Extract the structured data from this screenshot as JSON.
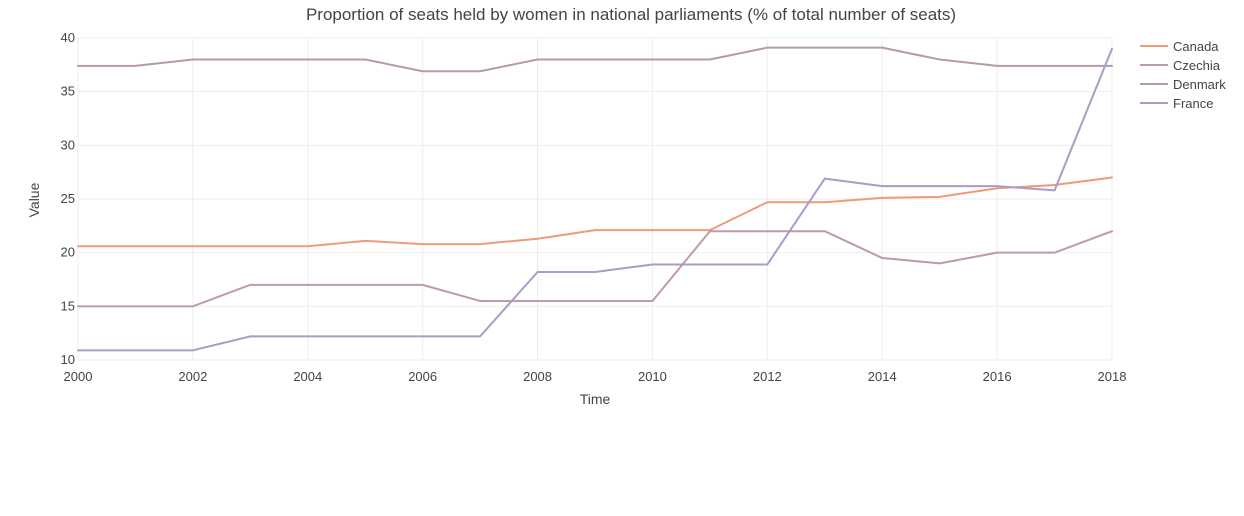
{
  "chart_data": {
    "type": "line",
    "title": "Proportion of seats held by women in national parliaments (% of total number of seats)",
    "xlabel": "Time",
    "ylabel": "Value",
    "xlim": [
      2000,
      2018
    ],
    "ylim": [
      10,
      40
    ],
    "x_ticks": [
      2000,
      2002,
      2004,
      2006,
      2008,
      2010,
      2012,
      2014,
      2016,
      2018
    ],
    "y_ticks": [
      10,
      15,
      20,
      25,
      30,
      35,
      40
    ],
    "grid": true,
    "legend_position": "top-right",
    "x": [
      2000,
      2001,
      2002,
      2003,
      2004,
      2005,
      2006,
      2007,
      2008,
      2009,
      2010,
      2011,
      2012,
      2013,
      2014,
      2015,
      2016,
      2017,
      2018
    ],
    "series": [
      {
        "name": "Canada",
        "color": "#ee9a7b",
        "values": [
          20.6,
          20.6,
          20.6,
          20.6,
          20.6,
          21.1,
          20.8,
          20.8,
          21.3,
          22.1,
          22.1,
          22.1,
          24.7,
          24.7,
          25.1,
          25.2,
          26.0,
          26.3,
          27.0
        ]
      },
      {
        "name": "Czechia",
        "color": "#c09aa8",
        "values": [
          15.0,
          15.0,
          15.0,
          17.0,
          17.0,
          17.0,
          17.0,
          15.5,
          15.5,
          15.5,
          15.5,
          22.0,
          22.0,
          22.0,
          19.5,
          19.0,
          20.0,
          20.0,
          22.0
        ]
      },
      {
        "name": "Denmark",
        "color": "#b49aae",
        "values": [
          37.4,
          37.4,
          38.0,
          38.0,
          38.0,
          38.0,
          36.9,
          36.9,
          38.0,
          38.0,
          38.0,
          38.0,
          39.1,
          39.1,
          39.1,
          38.0,
          37.4,
          37.4,
          37.4
        ]
      },
      {
        "name": "France",
        "color": "#ac9bc6",
        "values": [
          10.9,
          10.9,
          10.9,
          12.2,
          12.2,
          12.2,
          12.2,
          12.2,
          18.2,
          18.2,
          18.9,
          18.9,
          18.9,
          26.9,
          26.2,
          26.2,
          26.2,
          25.8,
          39.0
        ]
      }
    ]
  }
}
